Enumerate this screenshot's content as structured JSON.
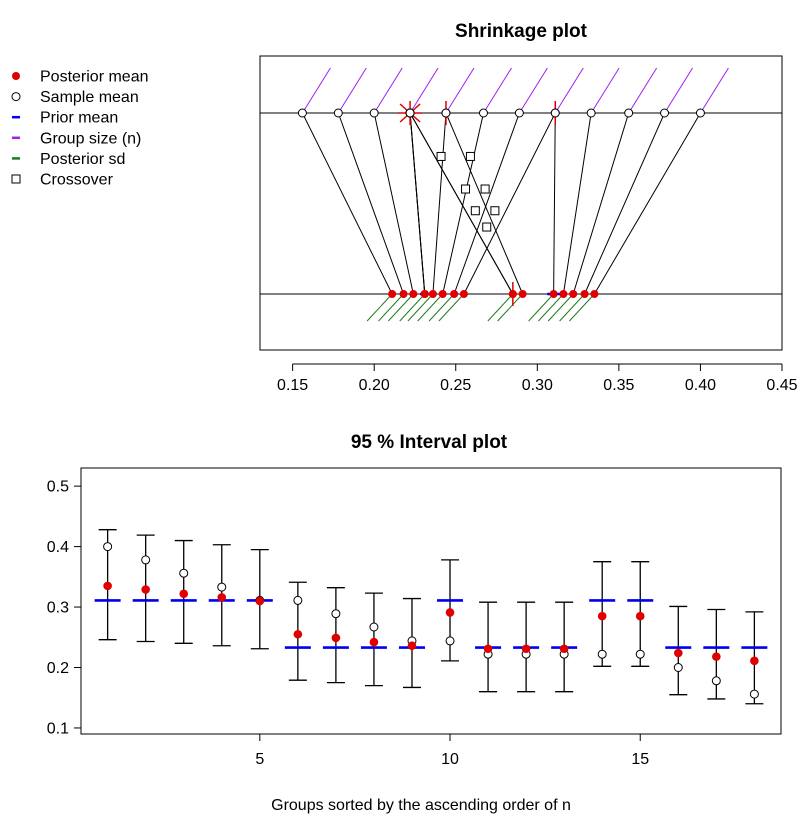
{
  "colors": {
    "posterior_mean": "#e00000",
    "sample_mean": "#000000",
    "prior_mean": "#0000ee",
    "group_size": "#a020f0",
    "posterior_sd": "#1f7a1f",
    "crossover": "#000000",
    "axis": "#000000"
  },
  "legend": {
    "items": [
      {
        "label": "Posterior mean",
        "icon": "filled-red-dot"
      },
      {
        "label": "Sample mean",
        "icon": "open-circle"
      },
      {
        "label": "Prior mean",
        "icon": "blue-dash"
      },
      {
        "label": "Group size (n)",
        "icon": "purple-dash"
      },
      {
        "label": "Posterior sd",
        "icon": "green-dash"
      },
      {
        "label": "Crossover",
        "icon": "open-square"
      }
    ]
  },
  "chart_data": [
    {
      "type": "scatter",
      "title": "Shrinkage plot",
      "xlim": [
        0.13,
        0.45
      ],
      "x_ticks": [
        0.15,
        0.2,
        0.25,
        0.3,
        0.35,
        0.4,
        0.45
      ],
      "x_tick_labels": [
        "0.15",
        "0.20",
        "0.25",
        "0.30",
        "0.35",
        "0.40",
        "0.45"
      ],
      "sample_means": [
        0.156,
        0.178,
        0.2,
        0.222,
        0.222,
        0.222,
        0.222,
        0.222,
        0.244,
        0.244,
        0.267,
        0.289,
        0.311,
        0.311,
        0.333,
        0.356,
        0.378,
        0.4
      ],
      "posterior_means": [
        0.211,
        0.218,
        0.224,
        0.285,
        0.285,
        0.231,
        0.231,
        0.231,
        0.236,
        0.291,
        0.242,
        0.249,
        0.255,
        0.31,
        0.316,
        0.322,
        0.329,
        0.335
      ],
      "group_size_marks": [
        0.156,
        0.178,
        0.2,
        0.222,
        0.244,
        0.267,
        0.289,
        0.311,
        0.333,
        0.356,
        0.378,
        0.4
      ],
      "prior_means": [
        0.233,
        0.311
      ],
      "posterior_sd_marks": [
        0.211,
        0.218,
        0.224,
        0.231,
        0.236,
        0.242,
        0.249,
        0.255,
        0.285,
        0.291,
        0.31,
        0.316,
        0.322,
        0.329,
        0.335
      ],
      "crossovers": [
        {
          "x": 0.241,
          "y": 0.76
        },
        {
          "x": 0.259,
          "y": 0.76
        },
        {
          "x": 0.256,
          "y": 0.58
        },
        {
          "x": 0.268,
          "y": 0.58
        },
        {
          "x": 0.262,
          "y": 0.46
        },
        {
          "x": 0.274,
          "y": 0.46
        },
        {
          "x": 0.269,
          "y": 0.37
        }
      ],
      "grid": false
    },
    {
      "type": "scatter",
      "title": "95 % Interval plot",
      "xlabel": "Groups sorted by the ascending order of n",
      "ylabel": "",
      "xlim": [
        0.3,
        18.7
      ],
      "ylim": [
        0.09,
        0.53
      ],
      "x_ticks": [
        5,
        10,
        15
      ],
      "x_tick_labels": [
        "5",
        "10",
        "15"
      ],
      "y_ticks": [
        0.1,
        0.2,
        0.3,
        0.4,
        0.5
      ],
      "y_tick_labels": [
        "0.1",
        "0.2",
        "0.3",
        "0.4",
        "0.5"
      ],
      "groups": [
        1,
        2,
        3,
        4,
        5,
        6,
        7,
        8,
        9,
        10,
        11,
        12,
        13,
        14,
        15,
        16,
        17,
        18
      ],
      "series": [
        {
          "name": "Posterior mean",
          "values": [
            0.335,
            0.329,
            0.322,
            0.316,
            0.31,
            0.255,
            0.249,
            0.242,
            0.236,
            0.291,
            0.231,
            0.231,
            0.231,
            0.285,
            0.285,
            0.224,
            0.218,
            0.211
          ]
        },
        {
          "name": "Sample mean",
          "values": [
            0.4,
            0.378,
            0.356,
            0.333,
            0.311,
            0.311,
            0.289,
            0.267,
            0.244,
            0.244,
            0.222,
            0.222,
            0.222,
            0.222,
            0.222,
            0.2,
            0.178,
            0.156
          ]
        },
        {
          "name": "Prior mean",
          "values": [
            0.311,
            0.311,
            0.311,
            0.311,
            0.311,
            0.233,
            0.233,
            0.233,
            0.233,
            0.311,
            0.233,
            0.233,
            0.233,
            0.311,
            0.311,
            0.233,
            0.233,
            0.233
          ]
        }
      ],
      "interval_lower": [
        0.246,
        0.243,
        0.24,
        0.236,
        0.231,
        0.179,
        0.175,
        0.17,
        0.167,
        0.211,
        0.16,
        0.16,
        0.16,
        0.202,
        0.202,
        0.155,
        0.148,
        0.14
      ],
      "interval_upper": [
        0.428,
        0.419,
        0.41,
        0.403,
        0.395,
        0.341,
        0.332,
        0.323,
        0.314,
        0.378,
        0.308,
        0.308,
        0.308,
        0.375,
        0.375,
        0.301,
        0.296,
        0.292
      ],
      "grid": false
    }
  ]
}
